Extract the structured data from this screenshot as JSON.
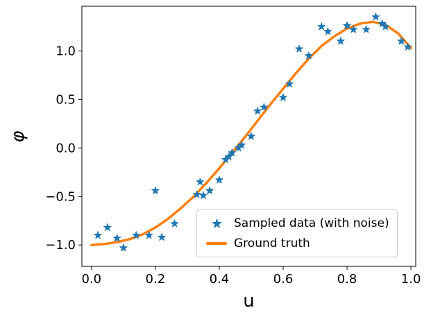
{
  "figure": {
    "background": "#ffffff",
    "spine_color": "#000000"
  },
  "chart_data": {
    "type": "scatter",
    "title": "",
    "xlabel": "u",
    "ylabel": "φ",
    "xlim": [
      -0.03,
      1.015
    ],
    "ylim": [
      -1.22,
      1.46
    ],
    "grid": false,
    "legend_position": "lower right",
    "x_ticks": [
      0.0,
      0.2,
      0.4,
      0.6,
      0.8,
      1.0
    ],
    "x_tick_labels": [
      "0.0",
      "0.2",
      "0.4",
      "0.6",
      "0.8",
      "1.0"
    ],
    "y_ticks": [
      -1.0,
      -0.5,
      0.0,
      0.5,
      1.0
    ],
    "y_tick_labels": [
      "−1.0",
      "−0.5",
      "0.0",
      "0.5",
      "1.0"
    ],
    "series": [
      {
        "name": "Sampled data (with noise)",
        "type": "scatter",
        "marker": "star",
        "color": "#1f77b4",
        "x": [
          0.02,
          0.05,
          0.08,
          0.1,
          0.14,
          0.18,
          0.2,
          0.22,
          0.26,
          0.33,
          0.34,
          0.35,
          0.37,
          0.4,
          0.42,
          0.43,
          0.44,
          0.46,
          0.47,
          0.5,
          0.52,
          0.54,
          0.6,
          0.62,
          0.65,
          0.68,
          0.72,
          0.74,
          0.78,
          0.8,
          0.82,
          0.86,
          0.89,
          0.91,
          0.92,
          0.97,
          0.99
        ],
        "y": [
          -0.9,
          -0.82,
          -0.93,
          -1.03,
          -0.9,
          -0.9,
          -0.44,
          -0.92,
          -0.78,
          -0.48,
          -0.35,
          -0.49,
          -0.44,
          -0.33,
          -0.12,
          -0.09,
          -0.05,
          0.0,
          0.03,
          0.12,
          0.38,
          0.42,
          0.52,
          0.66,
          1.02,
          0.95,
          1.25,
          1.2,
          1.1,
          1.26,
          1.22,
          1.22,
          1.35,
          1.28,
          1.25,
          1.1,
          1.04
        ]
      },
      {
        "name": "Ground truth",
        "type": "line",
        "color": "#ff7f0e",
        "line_width": 3.5,
        "x": [
          0.0,
          0.04,
          0.08,
          0.12,
          0.16,
          0.2,
          0.24,
          0.28,
          0.32,
          0.36,
          0.4,
          0.44,
          0.48,
          0.52,
          0.56,
          0.6,
          0.64,
          0.68,
          0.72,
          0.76,
          0.8,
          0.84,
          0.88,
          0.92,
          0.96,
          1.0
        ],
        "y": [
          -1.0,
          -0.99,
          -0.97,
          -0.94,
          -0.89,
          -0.82,
          -0.73,
          -0.62,
          -0.5,
          -0.36,
          -0.21,
          -0.05,
          0.11,
          0.28,
          0.45,
          0.61,
          0.77,
          0.92,
          1.05,
          1.15,
          1.23,
          1.28,
          1.3,
          1.27,
          1.18,
          1.03
        ]
      }
    ]
  }
}
